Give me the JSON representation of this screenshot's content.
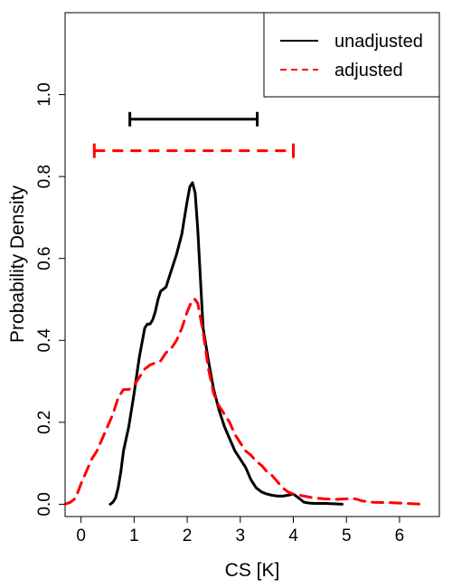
{
  "chart_data": {
    "type": "line",
    "title": "",
    "xlabel": "CS [K]",
    "ylabel": "Probability Density",
    "xlim": [
      -0.3,
      6.75
    ],
    "ylim": [
      -0.03,
      1.2
    ],
    "xticks": [
      0,
      1,
      2,
      3,
      4,
      5,
      6
    ],
    "yticks": [
      0.0,
      0.2,
      0.4,
      0.6,
      0.8,
      1.0
    ],
    "ytick_labels": [
      "0.0",
      "0.2",
      "0.4",
      "0.6",
      "0.8",
      "1.0"
    ],
    "grid": false,
    "legend_position": "top-right",
    "series": [
      {
        "name": "unadjusted",
        "color": "#000000",
        "style": "solid",
        "x": [
          0.55,
          0.6,
          0.65,
          0.7,
          0.75,
          0.8,
          0.9,
          1.0,
          1.1,
          1.2,
          1.25,
          1.3,
          1.35,
          1.4,
          1.45,
          1.5,
          1.55,
          1.6,
          1.65,
          1.7,
          1.8,
          1.9,
          1.95,
          2.0,
          2.05,
          2.1,
          2.15,
          2.2,
          2.25,
          2.3,
          2.4,
          2.5,
          2.6,
          2.7,
          2.8,
          2.9,
          3.0,
          3.1,
          3.2,
          3.3,
          3.4,
          3.5,
          3.6,
          3.7,
          3.8,
          3.9,
          4.0,
          4.1,
          4.2,
          4.3,
          4.4,
          4.6,
          4.8,
          4.92
        ],
        "y": [
          0.0,
          0.005,
          0.015,
          0.04,
          0.08,
          0.13,
          0.19,
          0.27,
          0.36,
          0.43,
          0.44,
          0.44,
          0.45,
          0.47,
          0.5,
          0.52,
          0.525,
          0.53,
          0.55,
          0.57,
          0.61,
          0.66,
          0.7,
          0.74,
          0.775,
          0.785,
          0.76,
          0.67,
          0.55,
          0.43,
          0.35,
          0.28,
          0.23,
          0.19,
          0.16,
          0.13,
          0.11,
          0.09,
          0.06,
          0.04,
          0.03,
          0.025,
          0.022,
          0.02,
          0.02,
          0.022,
          0.025,
          0.015,
          0.005,
          0.003,
          0.002,
          0.002,
          0.001,
          0.0
        ]
      },
      {
        "name": "adjusted",
        "color": "#ff0000",
        "style": "dashed",
        "x": [
          -0.3,
          -0.2,
          -0.1,
          0.0,
          0.1,
          0.2,
          0.3,
          0.4,
          0.5,
          0.6,
          0.7,
          0.8,
          0.9,
          1.0,
          1.1,
          1.2,
          1.3,
          1.4,
          1.5,
          1.6,
          1.7,
          1.8,
          1.9,
          2.0,
          2.1,
          2.15,
          2.2,
          2.3,
          2.4,
          2.5,
          2.6,
          2.7,
          2.8,
          2.9,
          3.0,
          3.1,
          3.2,
          3.3,
          3.4,
          3.5,
          3.6,
          3.7,
          3.8,
          3.9,
          4.0,
          4.2,
          4.4,
          4.6,
          4.8,
          5.0,
          5.1,
          5.2,
          5.3,
          5.5,
          5.8,
          6.0,
          6.3,
          6.5
        ],
        "y": [
          0.0,
          0.005,
          0.015,
          0.05,
          0.08,
          0.11,
          0.13,
          0.16,
          0.19,
          0.22,
          0.26,
          0.28,
          0.28,
          0.29,
          0.31,
          0.33,
          0.34,
          0.345,
          0.35,
          0.37,
          0.38,
          0.4,
          0.43,
          0.47,
          0.5,
          0.5,
          0.49,
          0.42,
          0.33,
          0.27,
          0.24,
          0.22,
          0.2,
          0.17,
          0.15,
          0.13,
          0.12,
          0.105,
          0.095,
          0.08,
          0.07,
          0.055,
          0.04,
          0.03,
          0.025,
          0.02,
          0.015,
          0.013,
          0.012,
          0.013,
          0.015,
          0.012,
          0.008,
          0.005,
          0.004,
          0.003,
          0.001,
          0.0
        ]
      }
    ],
    "intervals": [
      {
        "series": "unadjusted",
        "x_low": 0.92,
        "x_high": 3.32,
        "y": 0.94,
        "color": "#000000",
        "style": "solid"
      },
      {
        "series": "adjusted",
        "x_low": 0.25,
        "x_high": 4.0,
        "y": 0.863,
        "color": "#ff0000",
        "style": "dashed"
      }
    ]
  }
}
